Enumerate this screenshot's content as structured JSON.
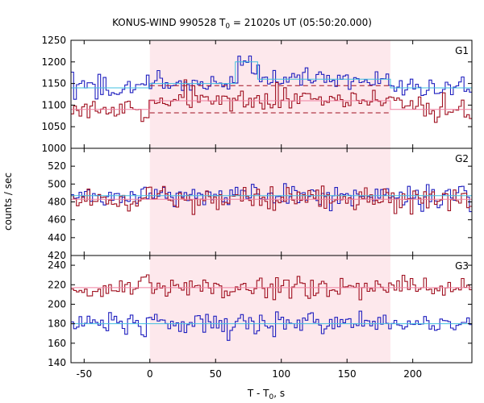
{
  "chart_data": {
    "type": "line",
    "title_main": "KONUS-WIND 990528 T",
    "title_sub": "0",
    "title_rest": " = 21020s UT (05:50:20.000)",
    "xlabel_main": "T - T",
    "xlabel_sub": "0",
    "xlabel_rest": ", s",
    "ylabel": "counts / sec",
    "xlim": [
      -60,
      245
    ],
    "xticks": [
      -50,
      0,
      50,
      100,
      150,
      200
    ],
    "highlight_x": [
      0,
      183
    ],
    "colors": {
      "blue": "#1f1fbf",
      "red": "#a01020",
      "cyan": "#40c0e0",
      "pink": "#f080a0",
      "highlight": "#fde8ec"
    },
    "panels": [
      {
        "label": "G1",
        "ylim": [
          1000,
          1250
        ],
        "yticks": [
          1000,
          1050,
          1100,
          1150,
          1200,
          1250
        ],
        "blue_mean": 1145,
        "red_mean": 1095,
        "fit_blue": [
          [
            -60,
            1140
          ],
          [
            0,
            1140
          ],
          [
            0,
            1150
          ],
          [
            65,
            1150
          ],
          [
            65,
            1200
          ],
          [
            82,
            1200
          ],
          [
            82,
            1160
          ],
          [
            183,
            1160
          ],
          [
            183,
            1140
          ],
          [
            245,
            1140
          ]
        ],
        "fit_red": [
          [
            -60,
            1090
          ],
          [
            0,
            1090
          ],
          [
            0,
            1110
          ],
          [
            183,
            1110
          ],
          [
            183,
            1090
          ],
          [
            245,
            1090
          ]
        ],
        "dashed_levels": [
          1145,
          1082
        ],
        "dashed_range": [
          0,
          183
        ]
      },
      {
        "label": "G2",
        "ylim": [
          420,
          540
        ],
        "yticks": [
          420,
          440,
          460,
          480,
          500,
          520
        ],
        "blue_mean": 487,
        "red_mean": 482,
        "fit_blue": [
          [
            -60,
            487
          ],
          [
            245,
            487
          ]
        ],
        "fit_red": [
          [
            -60,
            483
          ],
          [
            245,
            483
          ]
        ],
        "dashed_levels": [],
        "dashed_range": [
          0,
          183
        ]
      },
      {
        "label": "G3",
        "ylim": [
          140,
          250
        ],
        "yticks": [
          140,
          160,
          180,
          200,
          220,
          240
        ],
        "blue_mean": 178,
        "red_mean": 218,
        "fit_blue": [
          [
            -60,
            180
          ],
          [
            245,
            180
          ]
        ],
        "fit_red": [
          [
            -60,
            217
          ],
          [
            245,
            217
          ]
        ],
        "dashed_levels": [],
        "dashed_range": [
          0,
          183
        ]
      }
    ]
  }
}
